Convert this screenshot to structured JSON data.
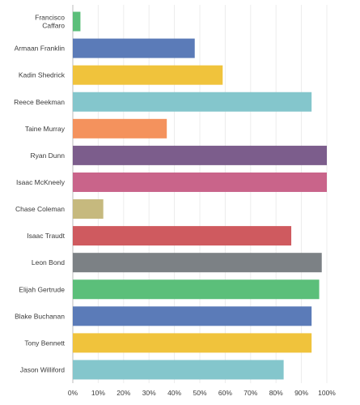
{
  "chart_data": {
    "type": "bar",
    "orientation": "horizontal",
    "categories": [
      "Francisco Caffaro",
      "Armaan Franklin",
      "Kadin Shedrick",
      "Reece Beekman",
      "Taine Murray",
      "Ryan Dunn",
      "Isaac McKneely",
      "Chase Coleman",
      "Isaac Traudt",
      "Leon Bond",
      "Elijah Gertrude",
      "Blake Buchanan",
      "Tony Bennett",
      "Jason Williford"
    ],
    "category_lines": [
      [
        "Francisco",
        "Caffaro"
      ],
      [
        "Armaan Franklin"
      ],
      [
        "Kadin Shedrick"
      ],
      [
        "Reece Beekman"
      ],
      [
        "Taine Murray"
      ],
      [
        "Ryan Dunn"
      ],
      [
        "Isaac McKneely"
      ],
      [
        "Chase Coleman"
      ],
      [
        "Isaac Traudt"
      ],
      [
        "Leon Bond"
      ],
      [
        "Elijah Gertrude"
      ],
      [
        "Blake Buchanan"
      ],
      [
        "Tony Bennett"
      ],
      [
        "Jason Williford"
      ]
    ],
    "values": [
      3,
      48,
      59,
      94,
      37,
      100,
      100,
      12,
      86,
      98,
      97,
      94,
      94,
      83
    ],
    "colors": [
      "#5bbf7a",
      "#5b7bb8",
      "#f0c33c",
      "#84c6cc",
      "#f4925d",
      "#7c5d8c",
      "#c9648a",
      "#c6b97e",
      "#cf5a5f",
      "#7c8185",
      "#5bbf7a",
      "#5b7bb8",
      "#f0c33c",
      "#84c6cc"
    ],
    "xlim": [
      0,
      100
    ],
    "xticks": [
      0,
      10,
      20,
      30,
      40,
      50,
      60,
      70,
      80,
      90,
      100
    ],
    "xtick_labels": [
      "0%",
      "10%",
      "20%",
      "30%",
      "40%",
      "50%",
      "60%",
      "70%",
      "80%",
      "90%",
      "100%"
    ],
    "grid": true,
    "title": "",
    "xlabel": "",
    "ylabel": ""
  }
}
